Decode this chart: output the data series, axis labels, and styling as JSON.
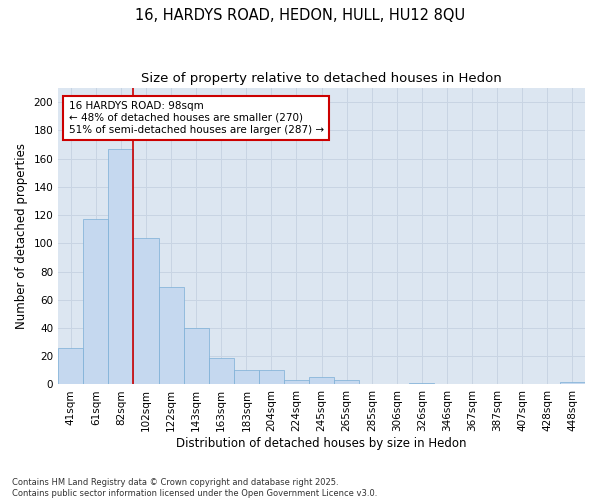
{
  "title1": "16, HARDYS ROAD, HEDON, HULL, HU12 8QU",
  "title2": "Size of property relative to detached houses in Hedon",
  "xlabel": "Distribution of detached houses by size in Hedon",
  "ylabel": "Number of detached properties",
  "categories": [
    "41sqm",
    "61sqm",
    "82sqm",
    "102sqm",
    "122sqm",
    "143sqm",
    "163sqm",
    "183sqm",
    "204sqm",
    "224sqm",
    "245sqm",
    "265sqm",
    "285sqm",
    "306sqm",
    "326sqm",
    "346sqm",
    "367sqm",
    "387sqm",
    "407sqm",
    "428sqm",
    "448sqm"
  ],
  "values": [
    26,
    117,
    167,
    104,
    69,
    40,
    19,
    10,
    10,
    3,
    5,
    3,
    0,
    0,
    1,
    0,
    0,
    0,
    0,
    0,
    2
  ],
  "bar_color": "#c5d8ef",
  "bar_edge_color": "#7aaed6",
  "bar_edge_width": 0.5,
  "grid_color": "#c8d4e3",
  "bg_color": "#dce6f1",
  "vline_color": "#cc0000",
  "vline_index": 2.5,
  "annotation_text": "16 HARDYS ROAD: 98sqm\n← 48% of detached houses are smaller (270)\n51% of semi-detached houses are larger (287) →",
  "annotation_box_color": "#ffffff",
  "annotation_box_edge": "#cc0000",
  "ylim": [
    0,
    210
  ],
  "yticks": [
    0,
    20,
    40,
    60,
    80,
    100,
    120,
    140,
    160,
    180,
    200
  ],
  "footnote": "Contains HM Land Registry data © Crown copyright and database right 2025.\nContains public sector information licensed under the Open Government Licence v3.0.",
  "title_fontsize": 10.5,
  "subtitle_fontsize": 9.5,
  "tick_fontsize": 7.5,
  "axis_label_fontsize": 8.5,
  "annotation_fontsize": 7.5,
  "footnote_fontsize": 6.0
}
